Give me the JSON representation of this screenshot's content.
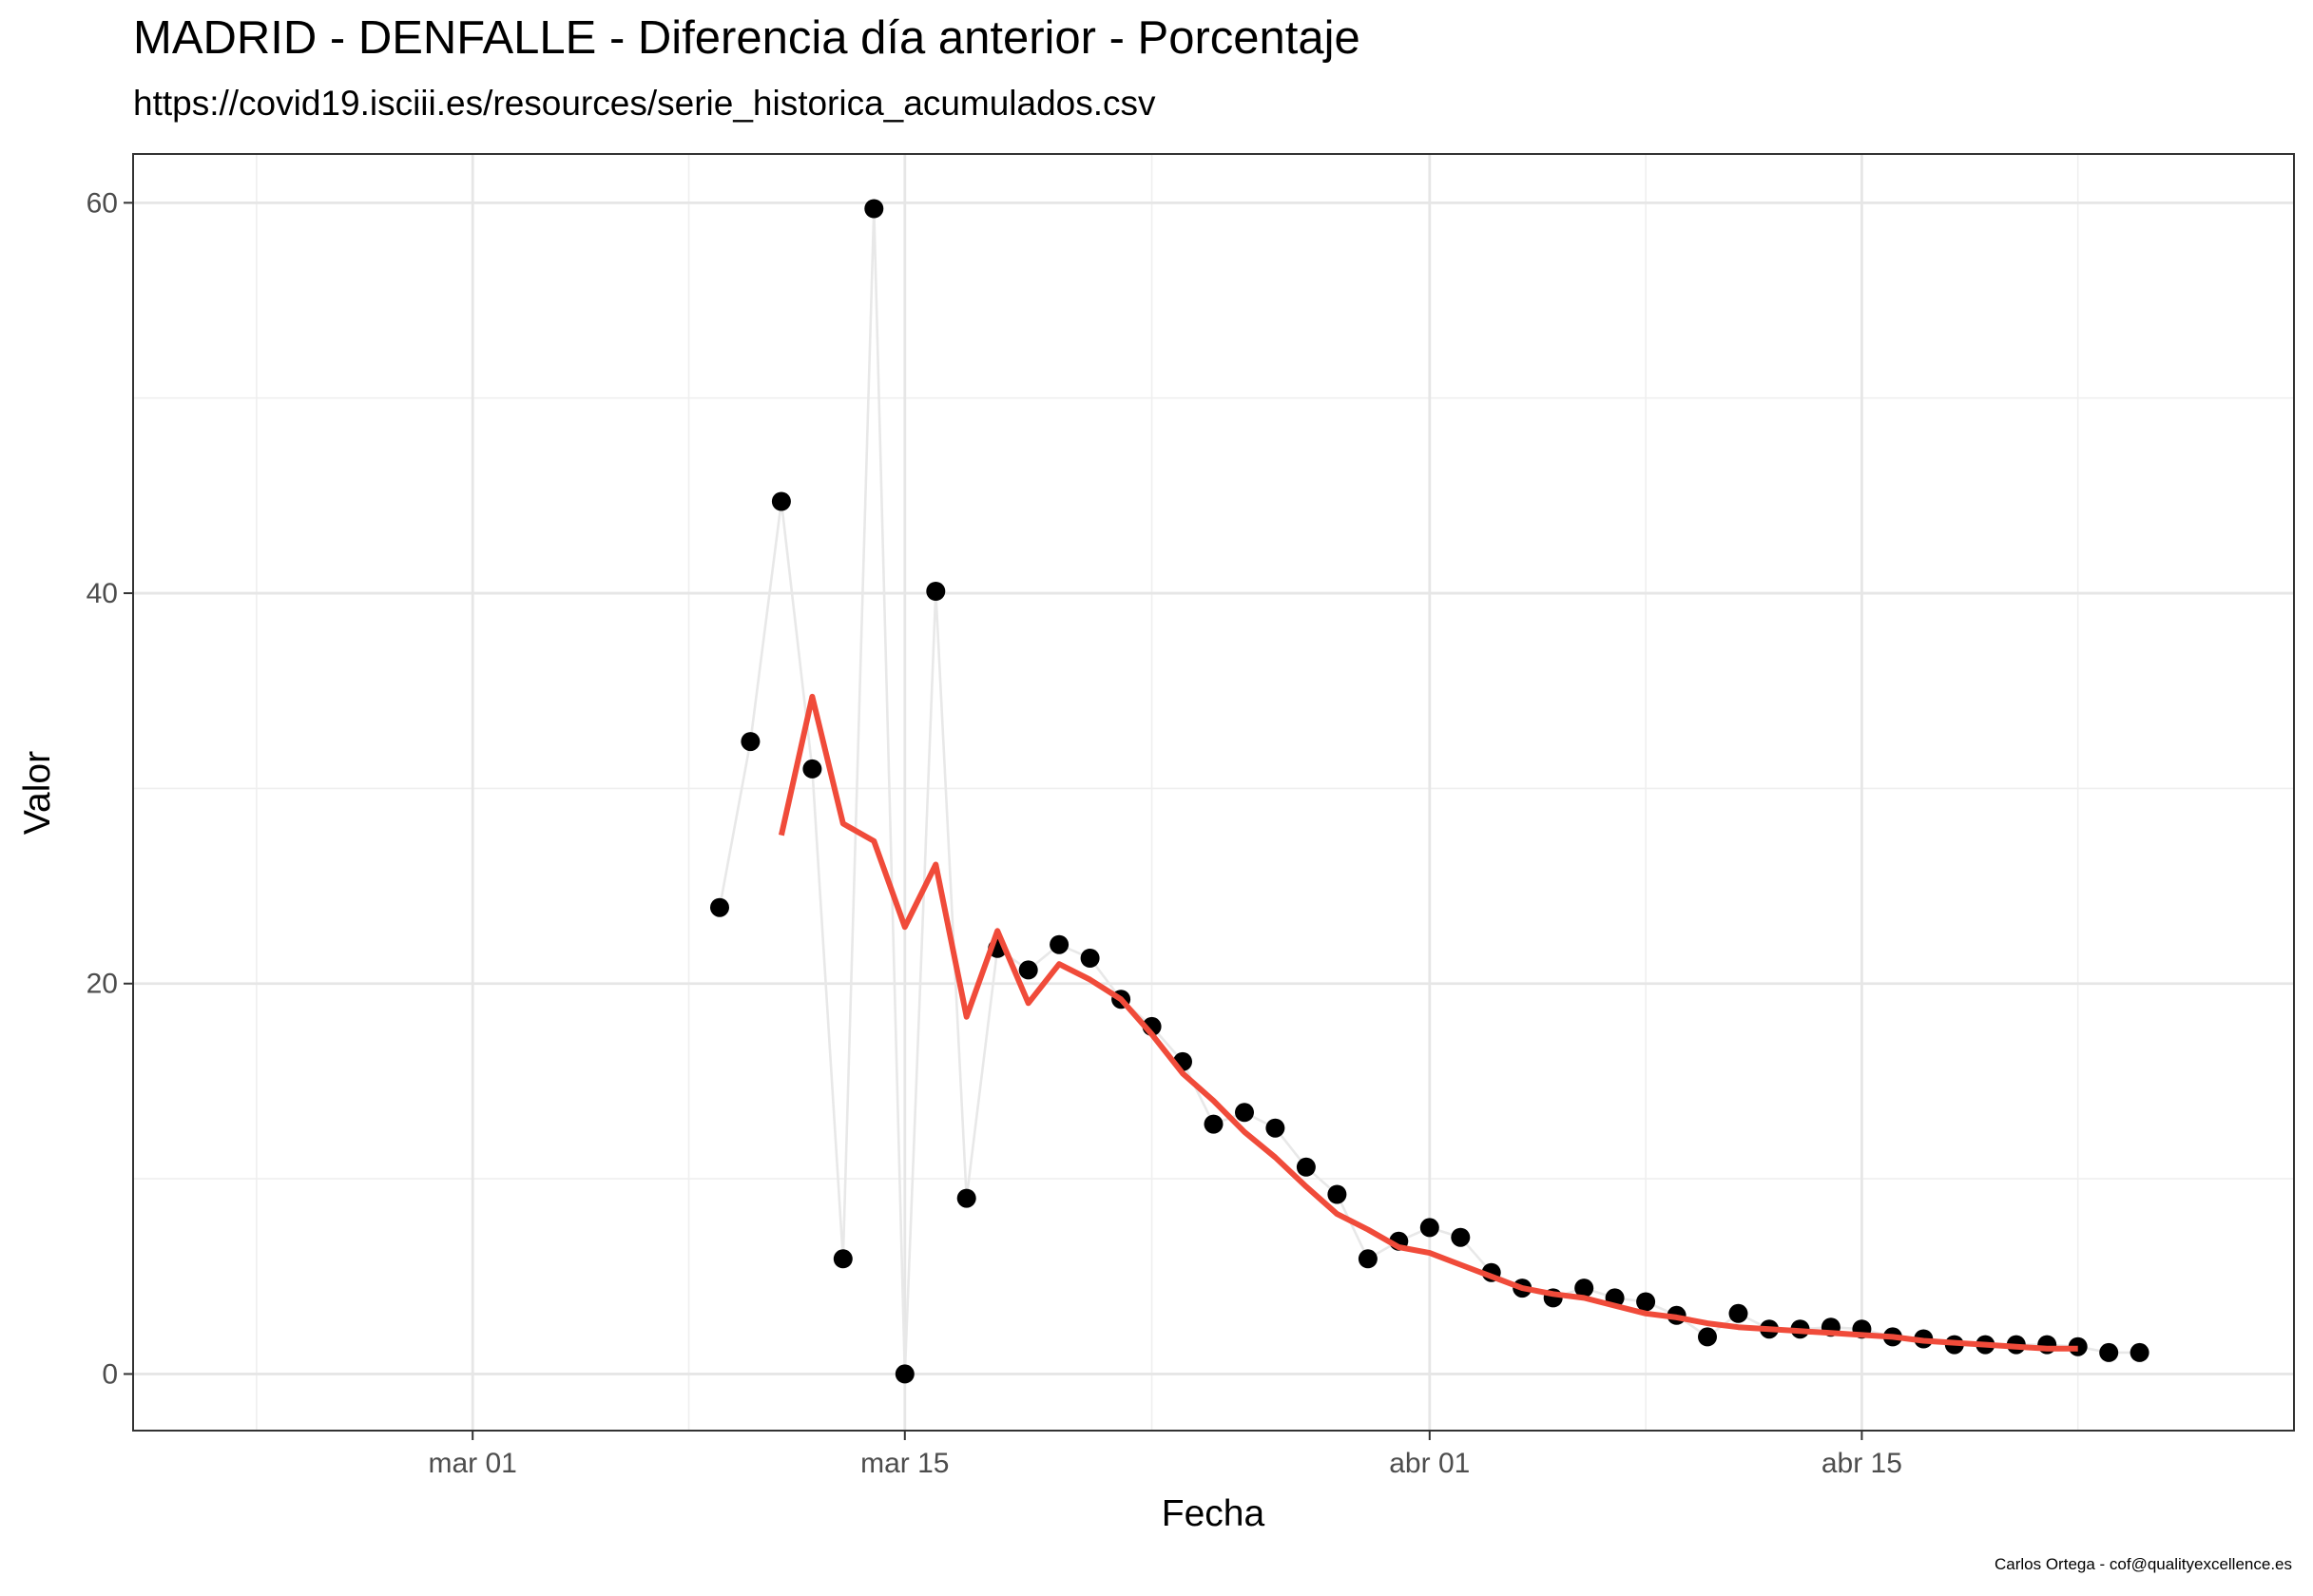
{
  "chart_data": {
    "type": "line",
    "title": "MADRID - DENFALLE - Diferencia día anterior - Porcentaje",
    "subtitle": "https://covid19.isciii.es/resources/serie_historica_acumulados.csv",
    "credit": "Carlos Ortega - cof@qualityexcellence.es",
    "xlabel": "Fecha",
    "ylabel": "Valor",
    "x_ticks": [
      {
        "date": "2020-03-01",
        "label": "mar 01"
      },
      {
        "date": "2020-03-15",
        "label": "mar 15"
      },
      {
        "date": "2020-04-01",
        "label": "abr 01"
      },
      {
        "date": "2020-04-15",
        "label": "abr 15"
      }
    ],
    "y_ticks": [
      0,
      20,
      40,
      60
    ],
    "xlim": [
      "2020-02-19",
      "2020-04-29"
    ],
    "ylim": [
      -2.9,
      62.5
    ],
    "grid": true,
    "series": [
      {
        "style": "points+line",
        "point_color": "#000000",
        "line_color": "#e8e8e8",
        "x": [
          "2020-03-09",
          "2020-03-10",
          "2020-03-11",
          "2020-03-12",
          "2020-03-13",
          "2020-03-14",
          "2020-03-15",
          "2020-03-16",
          "2020-03-17",
          "2020-03-18",
          "2020-03-19",
          "2020-03-20",
          "2020-03-21",
          "2020-03-22",
          "2020-03-23",
          "2020-03-24",
          "2020-03-25",
          "2020-03-26",
          "2020-03-27",
          "2020-03-28",
          "2020-03-29",
          "2020-03-30",
          "2020-03-31",
          "2020-04-01",
          "2020-04-02",
          "2020-04-03",
          "2020-04-04",
          "2020-04-05",
          "2020-04-06",
          "2020-04-07",
          "2020-04-08",
          "2020-04-09",
          "2020-04-10",
          "2020-04-11",
          "2020-04-12",
          "2020-04-13",
          "2020-04-14",
          "2020-04-15",
          "2020-04-16",
          "2020-04-17",
          "2020-04-18",
          "2020-04-19",
          "2020-04-20",
          "2020-04-21",
          "2020-04-22",
          "2020-04-23",
          "2020-04-24"
        ],
        "values": [
          23.9,
          32.4,
          44.7,
          31.0,
          5.9,
          59.7,
          0.0,
          40.1,
          9.0,
          21.8,
          20.7,
          22.0,
          21.3,
          19.2,
          17.8,
          16.0,
          12.8,
          13.4,
          12.6,
          10.6,
          9.2,
          5.9,
          6.8,
          7.5,
          7.0,
          5.2,
          4.4,
          3.9,
          4.4,
          3.9,
          3.7,
          3.0,
          1.9,
          3.1,
          2.3,
          2.3,
          2.4,
          2.3,
          1.9,
          1.8,
          1.5,
          1.5,
          1.5,
          1.5,
          1.4,
          1.1,
          1.1
        ]
      },
      {
        "style": "line",
        "line_color": "#f04b3a",
        "x": [
          "2020-03-11",
          "2020-03-12",
          "2020-03-13",
          "2020-03-14",
          "2020-03-15",
          "2020-03-16",
          "2020-03-17",
          "2020-03-18",
          "2020-03-19",
          "2020-03-20",
          "2020-03-21",
          "2020-03-22",
          "2020-03-23",
          "2020-03-24",
          "2020-03-25",
          "2020-03-26",
          "2020-03-27",
          "2020-03-28",
          "2020-03-29",
          "2020-03-30",
          "2020-03-31",
          "2020-04-01",
          "2020-04-02",
          "2020-04-03",
          "2020-04-04",
          "2020-04-05",
          "2020-04-06",
          "2020-04-07",
          "2020-04-08",
          "2020-04-09",
          "2020-04-10",
          "2020-04-11",
          "2020-04-12",
          "2020-04-13",
          "2020-04-14",
          "2020-04-15",
          "2020-04-16",
          "2020-04-17",
          "2020-04-18",
          "2020-04-19",
          "2020-04-20",
          "2020-04-21",
          "2020-04-22"
        ],
        "values": [
          27.6,
          34.7,
          28.2,
          27.3,
          22.9,
          26.1,
          18.3,
          22.7,
          19.0,
          21.0,
          20.2,
          19.2,
          17.4,
          15.4,
          14.0,
          12.4,
          11.1,
          9.6,
          8.2,
          7.4,
          6.5,
          6.2,
          5.6,
          5.0,
          4.4,
          4.1,
          3.9,
          3.5,
          3.1,
          2.9,
          2.6,
          2.4,
          2.3,
          2.2,
          2.1,
          2.0,
          1.9,
          1.7,
          1.6,
          1.5,
          1.4,
          1.3,
          1.3
        ]
      }
    ]
  }
}
